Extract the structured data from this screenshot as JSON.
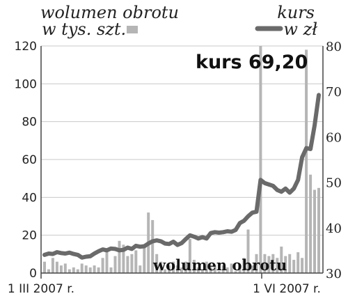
{
  "chart_data": {
    "type": "bar+line",
    "legend": {
      "volume_label_line1": "wolumen obrotu",
      "volume_label_line2": "w tys. szt.",
      "price_label_line1": "kurs",
      "price_label_line2": "w zł"
    },
    "annotation": "kurs 69,20",
    "inner_label": "wolumen obrotu",
    "x_start_label": "1 III 2007 r.",
    "x_end_label": "1 VI 2007 r.",
    "left_axis": {
      "min": 0,
      "max": 120,
      "ticks": [
        0,
        20,
        40,
        60,
        80,
        100,
        120
      ]
    },
    "right_axis": {
      "min": 30,
      "max": 80,
      "ticks": [
        30,
        40,
        50,
        60,
        70,
        80
      ]
    },
    "colors": {
      "bars": "#b5b5b5",
      "line": "#6a6a6a",
      "axis": "#444444",
      "grid": "#c8c8c8",
      "text": "#222222"
    },
    "series": [
      {
        "name": "wolumen obrotu w tys. szt.",
        "axis": "left",
        "values": [
          6,
          2,
          8,
          6,
          4,
          5,
          2,
          3,
          2,
          5,
          4,
          3,
          4,
          3,
          8,
          12,
          3,
          9,
          17,
          15,
          9,
          10,
          12,
          4,
          14,
          32,
          28,
          10,
          6,
          2,
          4,
          6,
          4,
          3,
          6,
          18,
          7,
          3,
          2,
          6,
          3,
          4,
          1,
          4,
          3,
          5,
          1,
          3,
          8,
          23,
          4,
          10,
          120,
          10,
          9,
          10,
          8,
          14,
          9,
          10,
          7,
          11,
          8,
          118,
          52,
          44,
          45
        ]
      },
      {
        "name": "kurs w zł",
        "axis": "right",
        "values": [
          34.0,
          34.3,
          34.2,
          34.6,
          34.4,
          34.3,
          34.5,
          34.2,
          34.0,
          33.4,
          33.6,
          33.7,
          34.3,
          34.8,
          35.2,
          35.0,
          35.4,
          35.3,
          35.0,
          35.1,
          35.6,
          35.3,
          36.0,
          35.8,
          35.9,
          36.5,
          37.0,
          37.2,
          37.0,
          36.5,
          36.4,
          36.9,
          36.2,
          36.6,
          37.5,
          38.3,
          38.0,
          37.6,
          37.9,
          37.6,
          38.8,
          39.0,
          38.9,
          39.0,
          39.2,
          39.1,
          39.5,
          41.0,
          41.5,
          42.5,
          43.3,
          43.5,
          50.5,
          49.8,
          49.5,
          49.2,
          48.3,
          47.9,
          48.6,
          47.7,
          48.6,
          50.5,
          55.5,
          57.5,
          57.3,
          62.5,
          69.2
        ]
      }
    ]
  }
}
